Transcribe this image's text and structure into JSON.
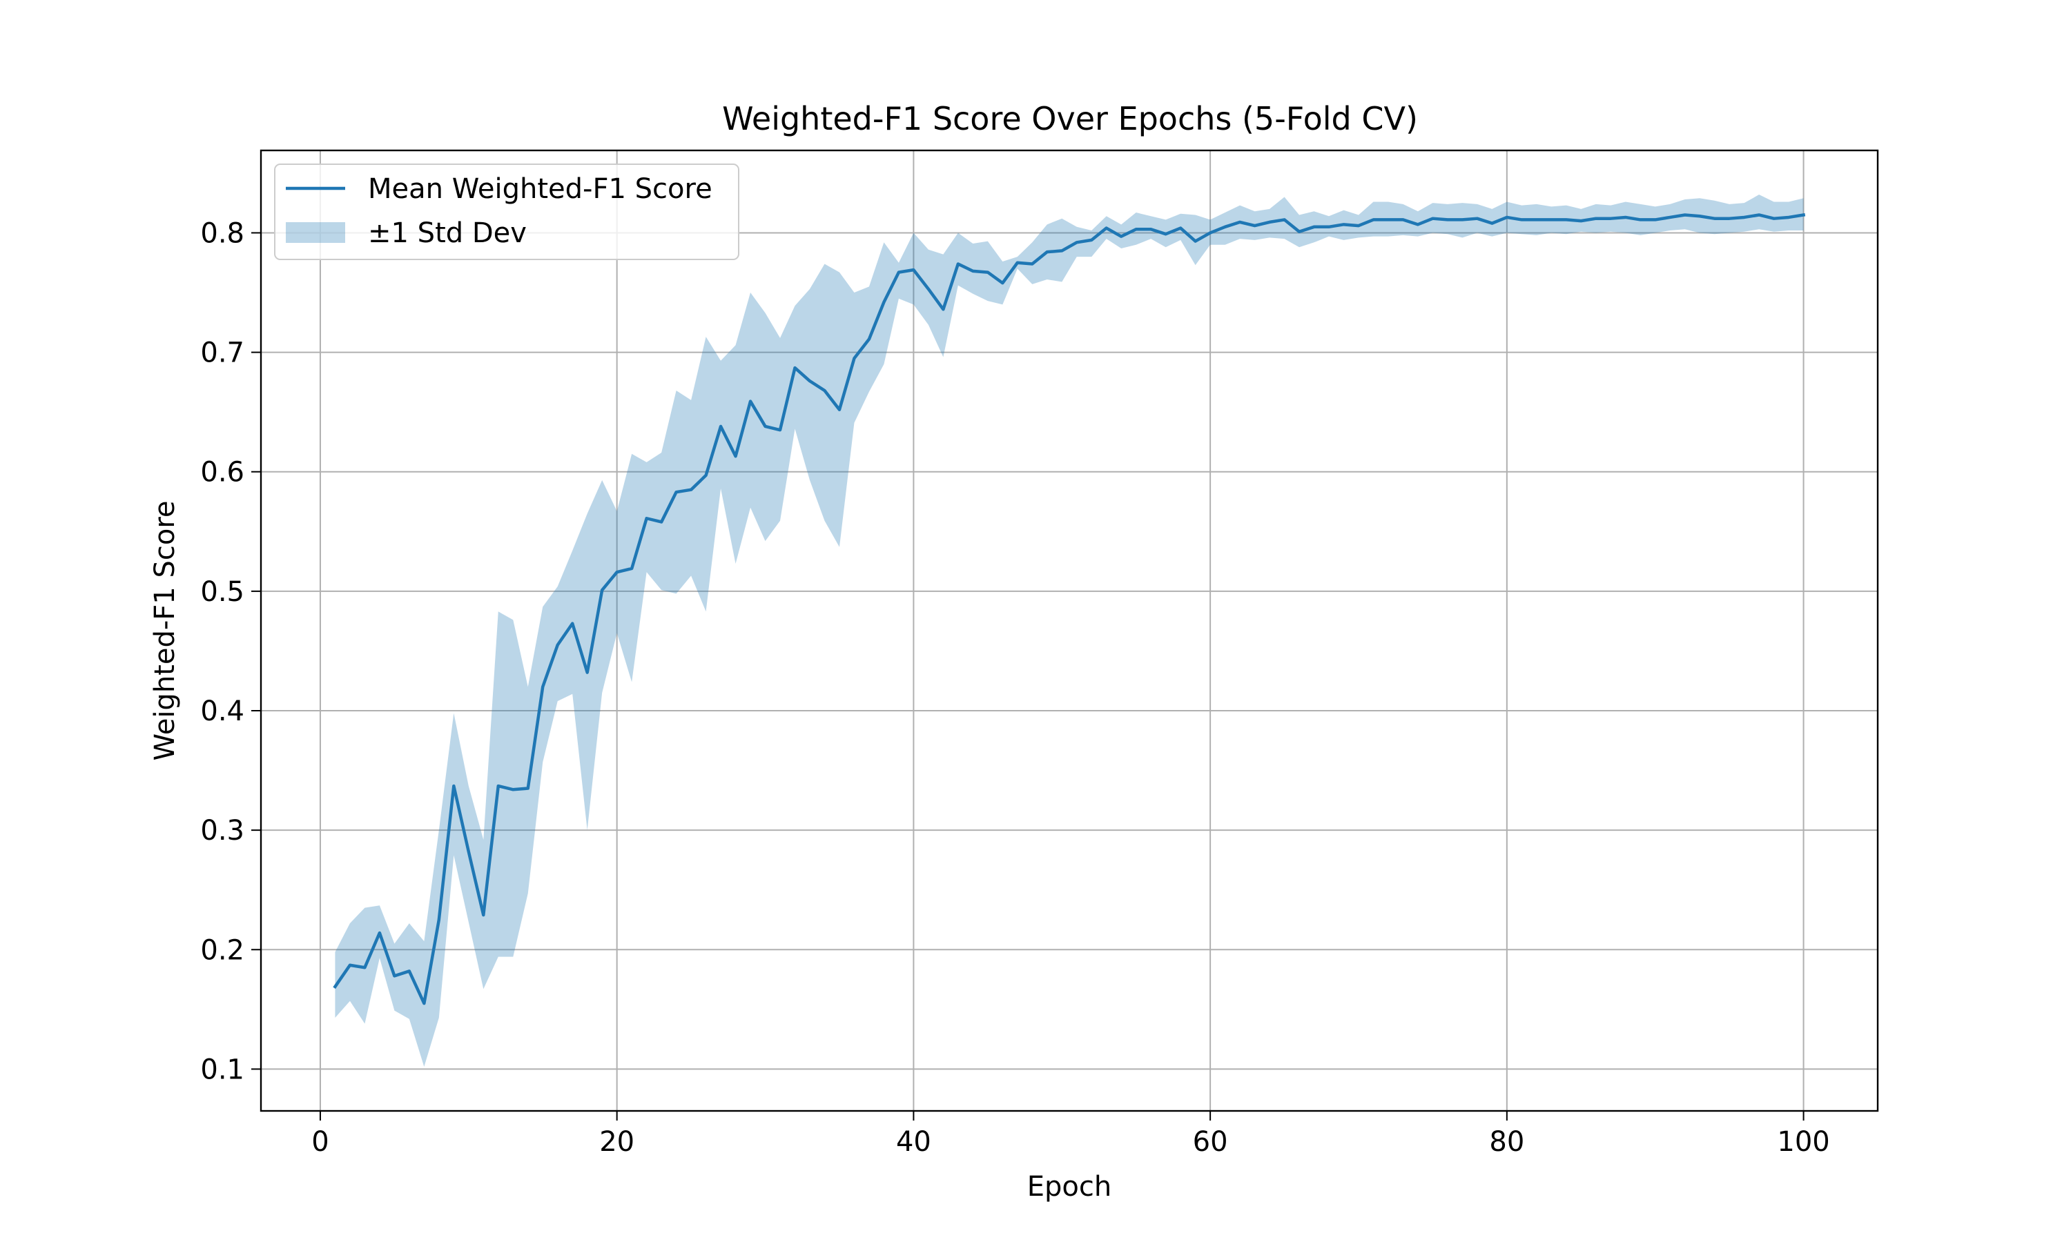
{
  "chart_data": {
    "type": "line",
    "title": "Weighted-F1 Score Over Epochs (5-Fold CV)",
    "xlabel": "Epoch",
    "ylabel": "Weighted-F1 Score",
    "xlim": [
      -4,
      105
    ],
    "ylim": [
      0.065,
      0.869
    ],
    "xticks": [
      0,
      20,
      40,
      60,
      80,
      100
    ],
    "yticks": [
      0.1,
      0.2,
      0.3,
      0.4,
      0.5,
      0.6,
      0.7,
      0.8
    ],
    "grid": true,
    "legend_position": "top-left",
    "legend": [
      "Mean Weighted-F1 Score",
      "±1 Std Dev"
    ],
    "colors": {
      "line": "#1f77b4",
      "band": "#1f77b4",
      "grid": "#b0b0b0"
    },
    "series": [
      {
        "name": "Mean Weighted-F1 Score",
        "x": [
          1,
          2,
          3,
          4,
          5,
          6,
          7,
          8,
          9,
          10,
          11,
          12,
          13,
          14,
          15,
          16,
          17,
          18,
          19,
          20,
          21,
          22,
          23,
          24,
          25,
          26,
          27,
          28,
          29,
          30,
          31,
          32,
          33,
          34,
          35,
          36,
          37,
          38,
          39,
          40,
          41,
          42,
          43,
          44,
          45,
          46,
          47,
          48,
          49,
          50,
          51,
          52,
          53,
          54,
          55,
          56,
          57,
          58,
          59,
          60,
          61,
          62,
          63,
          64,
          65,
          66,
          67,
          68,
          69,
          70,
          71,
          72,
          73,
          74,
          75,
          76,
          77,
          78,
          79,
          80,
          81,
          82,
          83,
          84,
          85,
          86,
          87,
          88,
          89,
          90,
          91,
          92,
          93,
          94,
          95,
          96,
          97,
          98,
          99,
          100
        ],
        "values": [
          0.169,
          0.187,
          0.185,
          0.214,
          0.178,
          0.182,
          0.155,
          0.225,
          0.337,
          0.282,
          0.229,
          0.337,
          0.334,
          0.335,
          0.42,
          0.455,
          0.473,
          0.432,
          0.501,
          0.516,
          0.519,
          0.561,
          0.558,
          0.583,
          0.585,
          0.597,
          0.638,
          0.613,
          0.659,
          0.638,
          0.635,
          0.687,
          0.676,
          0.668,
          0.652,
          0.695,
          0.711,
          0.742,
          0.767,
          0.769,
          0.753,
          0.736,
          0.774,
          0.768,
          0.767,
          0.758,
          0.775,
          0.774,
          0.784,
          0.785,
          0.792,
          0.794,
          0.804,
          0.797,
          0.803,
          0.803,
          0.799,
          0.804,
          0.793,
          0.8,
          0.805,
          0.809,
          0.806,
          0.809,
          0.811,
          0.801,
          0.805,
          0.805,
          0.807,
          0.806,
          0.811,
          0.811,
          0.811,
          0.807,
          0.812,
          0.811,
          0.811,
          0.812,
          0.808,
          0.813,
          0.811,
          0.811,
          0.811,
          0.811,
          0.81,
          0.812,
          0.812,
          0.813,
          0.811,
          0.811,
          0.813,
          0.815,
          0.814,
          0.812,
          0.812,
          0.813,
          0.815,
          0.812,
          0.813,
          0.815
        ]
      },
      {
        "name": "±1 Std Dev",
        "x": [
          1,
          2,
          3,
          4,
          5,
          6,
          7,
          8,
          9,
          10,
          11,
          12,
          13,
          14,
          15,
          16,
          17,
          18,
          19,
          20,
          21,
          22,
          23,
          24,
          25,
          26,
          27,
          28,
          29,
          30,
          31,
          32,
          33,
          34,
          35,
          36,
          37,
          38,
          39,
          40,
          41,
          42,
          43,
          44,
          45,
          46,
          47,
          48,
          49,
          50,
          51,
          52,
          53,
          54,
          55,
          56,
          57,
          58,
          59,
          60,
          61,
          62,
          63,
          64,
          65,
          66,
          67,
          68,
          69,
          70,
          71,
          72,
          73,
          74,
          75,
          76,
          77,
          78,
          79,
          80,
          81,
          82,
          83,
          84,
          85,
          86,
          87,
          88,
          89,
          90,
          91,
          92,
          93,
          94,
          95,
          96,
          97,
          98,
          99,
          100
        ],
        "lower": [
          0.143,
          0.157,
          0.138,
          0.193,
          0.149,
          0.142,
          0.102,
          0.143,
          0.279,
          0.223,
          0.167,
          0.194,
          0.194,
          0.247,
          0.357,
          0.408,
          0.414,
          0.3,
          0.415,
          0.465,
          0.424,
          0.516,
          0.501,
          0.498,
          0.513,
          0.483,
          0.586,
          0.523,
          0.57,
          0.542,
          0.559,
          0.636,
          0.593,
          0.559,
          0.537,
          0.641,
          0.667,
          0.69,
          0.745,
          0.74,
          0.723,
          0.696,
          0.756,
          0.749,
          0.743,
          0.74,
          0.77,
          0.757,
          0.761,
          0.759,
          0.78,
          0.78,
          0.795,
          0.787,
          0.79,
          0.795,
          0.788,
          0.794,
          0.773,
          0.79,
          0.79,
          0.795,
          0.794,
          0.796,
          0.795,
          0.788,
          0.792,
          0.797,
          0.794,
          0.796,
          0.797,
          0.797,
          0.798,
          0.797,
          0.8,
          0.799,
          0.796,
          0.8,
          0.797,
          0.8,
          0.799,
          0.798,
          0.8,
          0.799,
          0.801,
          0.8,
          0.801,
          0.8,
          0.798,
          0.8,
          0.802,
          0.803,
          0.8,
          0.799,
          0.8,
          0.801,
          0.803,
          0.801,
          0.802,
          0.802
        ],
        "upper": [
          0.198,
          0.222,
          0.235,
          0.237,
          0.205,
          0.222,
          0.207,
          0.3,
          0.398,
          0.337,
          0.292,
          0.483,
          0.476,
          0.42,
          0.487,
          0.504,
          0.534,
          0.565,
          0.593,
          0.567,
          0.615,
          0.608,
          0.616,
          0.668,
          0.66,
          0.713,
          0.693,
          0.706,
          0.75,
          0.733,
          0.712,
          0.739,
          0.753,
          0.774,
          0.767,
          0.75,
          0.755,
          0.792,
          0.775,
          0.8,
          0.786,
          0.782,
          0.8,
          0.791,
          0.793,
          0.776,
          0.78,
          0.792,
          0.807,
          0.812,
          0.805,
          0.802,
          0.814,
          0.807,
          0.817,
          0.814,
          0.811,
          0.816,
          0.815,
          0.811,
          0.817,
          0.823,
          0.818,
          0.82,
          0.83,
          0.815,
          0.818,
          0.814,
          0.819,
          0.815,
          0.826,
          0.826,
          0.824,
          0.818,
          0.825,
          0.824,
          0.825,
          0.824,
          0.82,
          0.826,
          0.823,
          0.824,
          0.822,
          0.823,
          0.82,
          0.824,
          0.823,
          0.826,
          0.824,
          0.822,
          0.824,
          0.828,
          0.829,
          0.827,
          0.824,
          0.825,
          0.832,
          0.826,
          0.826,
          0.829
        ]
      }
    ]
  }
}
